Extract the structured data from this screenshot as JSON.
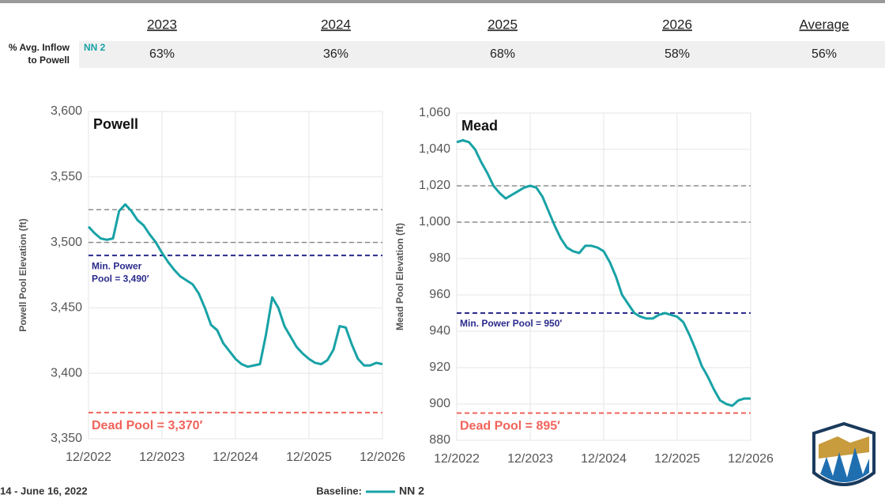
{
  "header": {
    "columns": [
      "2023",
      "2024",
      "2025",
      "2026",
      "Average"
    ],
    "row_label": [
      "% Avg. Inflow",
      "to Powell"
    ],
    "row_series": "NN 2",
    "row_values": [
      "63%",
      "36%",
      "68%",
      "58%",
      "56%"
    ]
  },
  "footer": "14 - June 16, 2022",
  "legend_title": "Baseline:",
  "chart_data": [
    {
      "type": "line",
      "title": "Powell",
      "y_label": "Powell Pool Elevation (ft)",
      "x": [
        "12/2022",
        "01/2023",
        "02/2023",
        "03/2023",
        "04/2023",
        "05/2023",
        "06/2023",
        "07/2023",
        "08/2023",
        "09/2023",
        "10/2023",
        "11/2023",
        "12/2023",
        "01/2024",
        "02/2024",
        "03/2024",
        "04/2024",
        "05/2024",
        "06/2024",
        "07/2024",
        "08/2024",
        "09/2024",
        "10/2024",
        "11/2024",
        "12/2024",
        "01/2025",
        "02/2025",
        "03/2025",
        "04/2025",
        "05/2025",
        "06/2025",
        "07/2025",
        "08/2025",
        "09/2025",
        "10/2025",
        "11/2025",
        "12/2025",
        "01/2026",
        "02/2026",
        "03/2026",
        "04/2026",
        "05/2026",
        "06/2026",
        "07/2026",
        "08/2026",
        "09/2026",
        "10/2026",
        "11/2026",
        "12/2026"
      ],
      "series": [
        {
          "name": "NN 2",
          "color": "#17a2a6",
          "values": [
            3512,
            3507,
            3503,
            3502,
            3503,
            3524,
            3529,
            3524,
            3517,
            3513,
            3506,
            3500,
            3492,
            3485,
            3479,
            3474,
            3471,
            3468,
            3461,
            3450,
            3437,
            3433,
            3423,
            3417,
            3411,
            3407,
            3405,
            3406,
            3407,
            3430,
            3458,
            3450,
            3436,
            3428,
            3420,
            3415,
            3411,
            3408,
            3407,
            3410,
            3418,
            3436,
            3435,
            3422,
            3411,
            3406,
            3406,
            3408,
            3407
          ]
        }
      ],
      "xlim": [
        "12/2022",
        "12/2026"
      ],
      "xticks": [
        "12/2022",
        "12/2023",
        "12/2024",
        "12/2025",
        "12/2026"
      ],
      "ylim": [
        3350,
        3600
      ],
      "yticks": [
        {
          "value": 3350,
          "label": "3,350"
        },
        {
          "value": 3400,
          "label": "3,400"
        },
        {
          "value": 3450,
          "label": "3,450"
        },
        {
          "value": 3500,
          "label": "3,500"
        },
        {
          "value": 3550,
          "label": "3,550"
        },
        {
          "value": 3600,
          "label": "3,600"
        }
      ],
      "grid": true,
      "reference_lines": [
        {
          "value": 3525,
          "color": "#8c8c8c"
        },
        {
          "value": 3500,
          "color": "#8c8c8c"
        },
        {
          "value": 3490,
          "color": "#2b2b8c",
          "label": [
            "Min. Power",
            "Pool = 3,490′"
          ]
        },
        {
          "value": 3370,
          "color": "#f0635a",
          "label": [
            "Dead Pool = 3,370′"
          ]
        }
      ]
    },
    {
      "type": "line",
      "title": "Mead",
      "y_label": "Mead Pool Elevation (ft)",
      "x": [
        "12/2022",
        "01/2023",
        "02/2023",
        "03/2023",
        "04/2023",
        "05/2023",
        "06/2023",
        "07/2023",
        "08/2023",
        "09/2023",
        "10/2023",
        "11/2023",
        "12/2023",
        "01/2024",
        "02/2024",
        "03/2024",
        "04/2024",
        "05/2024",
        "06/2024",
        "07/2024",
        "08/2024",
        "09/2024",
        "10/2024",
        "11/2024",
        "12/2024",
        "01/2025",
        "02/2025",
        "03/2025",
        "04/2025",
        "05/2025",
        "06/2025",
        "07/2025",
        "08/2025",
        "09/2025",
        "10/2025",
        "11/2025",
        "12/2025",
        "01/2026",
        "02/2026",
        "03/2026",
        "04/2026",
        "05/2026",
        "06/2026",
        "07/2026",
        "08/2026",
        "09/2026",
        "10/2026",
        "11/2026",
        "12/2026"
      ],
      "series": [
        {
          "name": "NN 2",
          "color": "#17a2a6",
          "values": [
            1044,
            1045,
            1044,
            1040,
            1033,
            1027,
            1020,
            1016,
            1013,
            1015,
            1017,
            1019,
            1020,
            1019,
            1014,
            1006,
            998,
            991,
            986,
            984,
            983,
            987,
            987,
            986,
            984,
            978,
            970,
            960,
            955,
            950,
            948,
            947,
            947,
            949,
            950,
            949,
            948,
            945,
            938,
            930,
            921,
            915,
            908,
            902,
            900,
            899,
            902,
            903,
            903
          ]
        }
      ],
      "xlim": [
        "12/2022",
        "12/2026"
      ],
      "xticks": [
        "12/2022",
        "12/2023",
        "12/2024",
        "12/2025",
        "12/2026"
      ],
      "ylim": [
        880,
        1060
      ],
      "yticks": [
        880,
        900,
        920,
        940,
        960,
        980,
        {
          "value": 1000,
          "label": "1,000"
        },
        {
          "value": 1020,
          "label": "1,020"
        },
        {
          "value": 1040,
          "label": "1,040"
        },
        {
          "value": 1060,
          "label": "1,060"
        }
      ],
      "grid": true,
      "reference_lines": [
        {
          "value": 1020,
          "color": "#8c8c8c"
        },
        {
          "value": 1000,
          "color": "#8c8c8c"
        },
        {
          "value": 950,
          "color": "#2b2b8c",
          "label": [
            "Min. Power Pool = 950′"
          ]
        },
        {
          "value": 895,
          "color": "#f0635a",
          "label": [
            "Dead Pool = 895′"
          ]
        }
      ]
    }
  ]
}
